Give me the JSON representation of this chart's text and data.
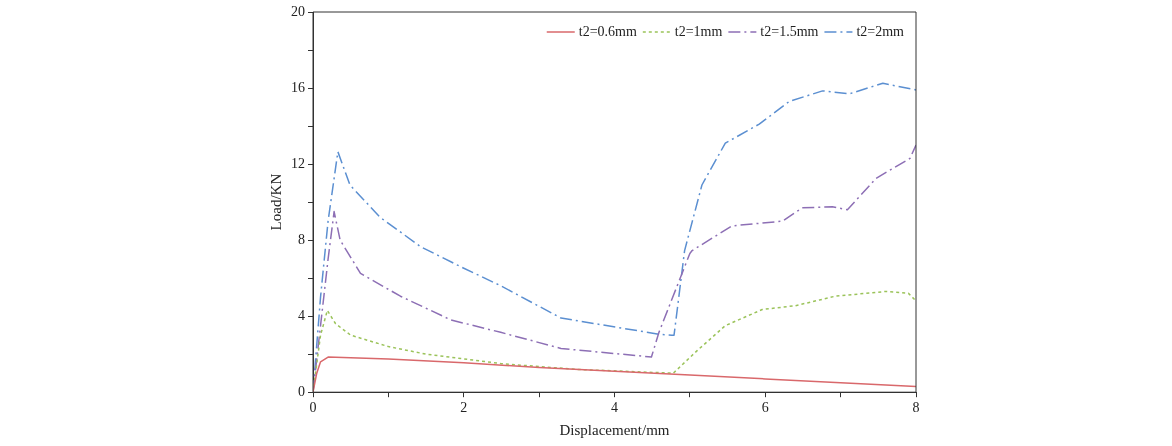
{
  "chart_data": {
    "type": "line",
    "xlabel": "Displacement/mm",
    "ylabel": "Load/KN",
    "xlim": [
      0,
      8
    ],
    "ylim": [
      0,
      20
    ],
    "xticks": [
      0,
      {
        "value": 1,
        "label": null
      },
      2,
      {
        "value": 3,
        "label": null
      },
      4,
      {
        "value": 5,
        "label": null
      },
      6,
      {
        "value": 7,
        "label": null
      },
      8
    ],
    "yticks": [
      0,
      {
        "value": 2,
        "label": null
      },
      4,
      {
        "value": 6,
        "label": null
      },
      8,
      {
        "value": 10,
        "label": null
      },
      12,
      {
        "value": 14,
        "label": null
      },
      16,
      {
        "value": 18,
        "label": null
      },
      20
    ],
    "grid": false,
    "legend": "top right",
    "marker": "none",
    "series": [
      {
        "name": "t2=0.6mm",
        "color": "#d9686b",
        "line_style": "solid",
        "x": [
          0,
          0.05,
          0.1,
          0.2,
          1,
          2,
          3,
          4,
          5,
          6,
          7,
          8
        ],
        "values": [
          0,
          1.0,
          1.6,
          1.85,
          1.75,
          1.55,
          1.3,
          1.1,
          0.9,
          0.7,
          0.5,
          0.3
        ]
      },
      {
        "name": "t2=1mm",
        "color": "#9bc35a",
        "line_style": "dotted",
        "x": [
          0,
          0.1,
          0.19,
          0.3,
          0.5,
          1,
          1.5,
          2.5,
          3.5,
          4.78,
          5.1,
          5.47,
          5.96,
          6.4,
          6.72,
          6.93,
          7.6,
          7.9,
          8
        ],
        "values": [
          0,
          3.0,
          4.3,
          3.6,
          3.0,
          2.4,
          2.0,
          1.5,
          1.2,
          1.0,
          2.2,
          3.5,
          4.35,
          4.55,
          4.85,
          5.05,
          5.3,
          5.2,
          4.8
        ]
      },
      {
        "name": "t2=1.5mm",
        "color": "#8d6fb5",
        "line_style": "dashed",
        "x": [
          0,
          0.1,
          0.2,
          0.28,
          0.36,
          0.63,
          1.16,
          1.83,
          2.49,
          3.29,
          4.49,
          4.59,
          5.0,
          5.03,
          5.56,
          6.23,
          6.49,
          6.89,
          7.09,
          7.47,
          7.92,
          8
        ],
        "values": [
          0,
          3.5,
          7.0,
          9.5,
          8.0,
          6.25,
          5.05,
          3.8,
          3.15,
          2.3,
          1.85,
          3.15,
          7.3,
          7.45,
          8.75,
          9.0,
          9.7,
          9.75,
          9.6,
          11.25,
          12.3,
          13.0
        ]
      },
      {
        "name": "t2=2mm",
        "color": "#5b8fd1",
        "line_style": "dashed",
        "x": [
          0,
          0.1,
          0.2,
          0.33,
          0.49,
          0.89,
          1.43,
          1.96,
          2.49,
          3.29,
          4.59,
          4.76,
          4.79,
          4.93,
          5.16,
          5.47,
          5.92,
          6.32,
          6.76,
          7.12,
          7.56,
          8
        ],
        "values": [
          0,
          5.0,
          9.0,
          12.65,
          10.9,
          9.2,
          7.65,
          6.6,
          5.6,
          3.9,
          3.05,
          3.0,
          3.0,
          7.45,
          10.9,
          13.1,
          14.1,
          15.3,
          15.85,
          15.7,
          16.25,
          15.9
        ]
      }
    ]
  }
}
